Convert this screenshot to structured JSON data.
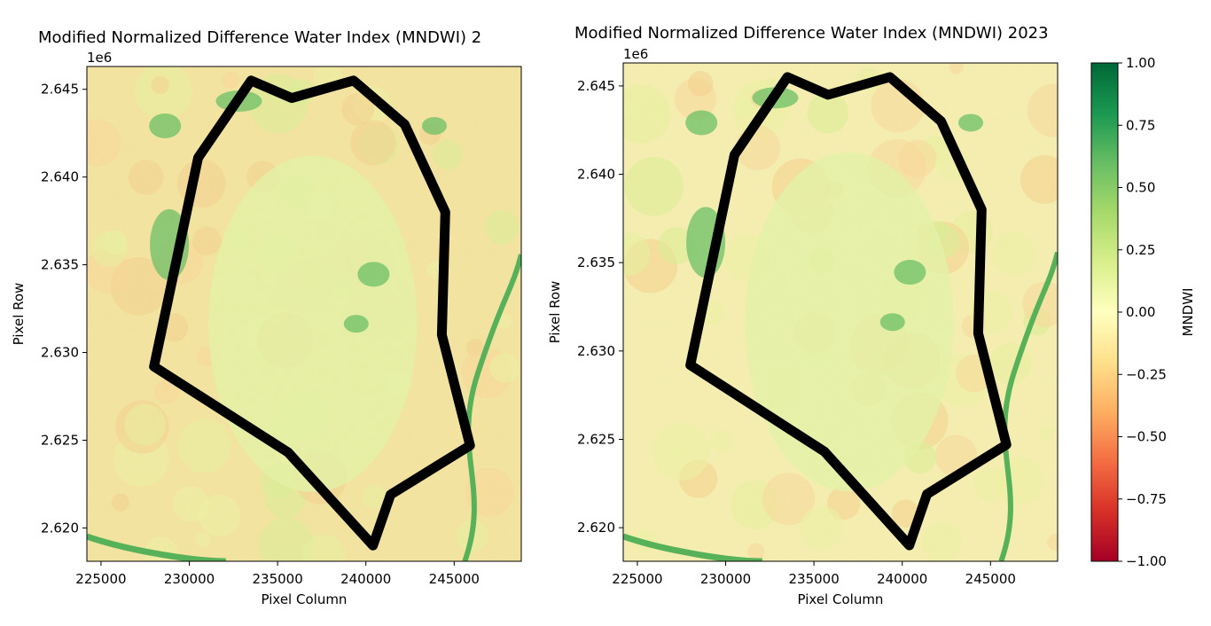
{
  "chart_data": [
    {
      "type": "heatmap",
      "title": "Modified Normalized Difference Water Index (MNDWI) 2",
      "xlabel": "Pixel Column",
      "ylabel": "Pixel Row",
      "y_offset_label": "1e6",
      "xlim": [
        224200,
        248800
      ],
      "ylim": [
        2.6181,
        2.6463
      ],
      "x_ticks": [
        225000,
        230000,
        235000,
        240000,
        245000
      ],
      "x_tick_labels": [
        "225000",
        "230000",
        "235000",
        "240000",
        "245000"
      ],
      "y_ticks": [
        2.62,
        2.625,
        2.63,
        2.635,
        2.64,
        2.645
      ],
      "y_tick_labels": [
        "2.620",
        "2.625",
        "2.630",
        "2.635",
        "2.640",
        "2.645"
      ],
      "boundary": [
        [
          233500,
          2.6455
        ],
        [
          235800,
          2.6445
        ],
        [
          239300,
          2.6455
        ],
        [
          242200,
          2.643
        ],
        [
          244500,
          2.638
        ],
        [
          244300,
          2.631
        ],
        [
          245900,
          2.6247
        ],
        [
          241400,
          2.6219
        ],
        [
          240400,
          2.619
        ],
        [
          235600,
          2.6243
        ],
        [
          228000,
          2.6292
        ],
        [
          230500,
          2.6411
        ]
      ]
    },
    {
      "type": "heatmap",
      "title": "Modified Normalized Difference Water Index (MNDWI) 2023",
      "xlabel": "Pixel Column",
      "ylabel": "Pixel Row",
      "y_offset_label": "1e6",
      "xlim": [
        224200,
        248800
      ],
      "ylim": [
        2.6181,
        2.6463
      ],
      "x_ticks": [
        225000,
        230000,
        235000,
        240000,
        245000
      ],
      "x_tick_labels": [
        "225000",
        "230000",
        "235000",
        "240000",
        "245000"
      ],
      "y_ticks": [
        2.62,
        2.625,
        2.63,
        2.635,
        2.64,
        2.645
      ],
      "y_tick_labels": [
        "2.620",
        "2.625",
        "2.630",
        "2.635",
        "2.640",
        "2.645"
      ],
      "boundary": [
        [
          233500,
          2.6455
        ],
        [
          235800,
          2.6445
        ],
        [
          239300,
          2.6455
        ],
        [
          242200,
          2.643
        ],
        [
          244500,
          2.638
        ],
        [
          244300,
          2.631
        ],
        [
          245900,
          2.6247
        ],
        [
          241400,
          2.6219
        ],
        [
          240400,
          2.619
        ],
        [
          235600,
          2.6243
        ],
        [
          228000,
          2.6292
        ],
        [
          230500,
          2.6411
        ]
      ]
    }
  ],
  "colorbar": {
    "label": "MNDWI",
    "range": [
      -1.0,
      1.0
    ],
    "colormap": "RdYlGn",
    "ticks": [
      1.0,
      0.75,
      0.5,
      0.25,
      0.0,
      -0.25,
      -0.5,
      -0.75,
      -1.0
    ],
    "tick_labels": [
      "1.00",
      "0.75",
      "0.50",
      "0.25",
      "0.00",
      "−0.25",
      "−0.50",
      "−0.75",
      "−1.00"
    ]
  }
}
